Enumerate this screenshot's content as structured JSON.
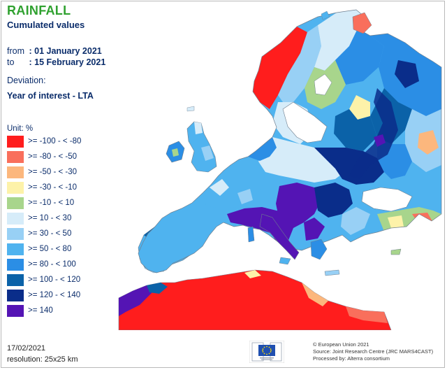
{
  "header": {
    "title": "RAINFALL",
    "subtitle": "Cumulated values"
  },
  "period": {
    "from_label": "from",
    "from_value": ": 01 January 2021",
    "to_label": "to",
    "to_value": ": 15 February 2021"
  },
  "deviation": {
    "label": "Deviation:",
    "value": "Year of interest - LTA"
  },
  "legend": {
    "unit_label": "Unit:  %",
    "classes": [
      {
        "label": ">= -100 - < -80",
        "color": "#ff1d1d"
      },
      {
        "label": ">= -80 - < -50",
        "color": "#f96f5c"
      },
      {
        "label": ">= -50 - < -30",
        "color": "#fcb77d"
      },
      {
        "label": ">= -30 - < -10",
        "color": "#fdf2a9"
      },
      {
        "label": ">= -10 - < 10",
        "color": "#a8d58c"
      },
      {
        "label": ">= 10 - < 30",
        "color": "#d6ecf9"
      },
      {
        "label": ">= 30 - < 50",
        "color": "#98d0f5"
      },
      {
        "label": ">= 50 - < 80",
        "color": "#4fb3ef"
      },
      {
        "label": ">= 80 - < 100",
        "color": "#2b8ee5"
      },
      {
        "label": ">= 100 - < 120",
        "color": "#0b62a8"
      },
      {
        "label": ">= 120 - < 140",
        "color": "#0a2d8a"
      },
      {
        "label": ">= 140",
        "color": "#5414b4"
      }
    ]
  },
  "footer": {
    "date": "17/02/2021",
    "resolution": "resolution:  25x25 km",
    "credit_line1": "© European Union 2021",
    "credit_line2": "Source: Joint Research Centre (JRC MARS4CAST)",
    "credit_line3": "Processed by: Alterra consortium"
  },
  "colors": {
    "sea": "#ffffff",
    "land_outline": "#6f7f8f",
    "title_green": "#2fa12f",
    "text_navy": "#0b2d6b"
  }
}
